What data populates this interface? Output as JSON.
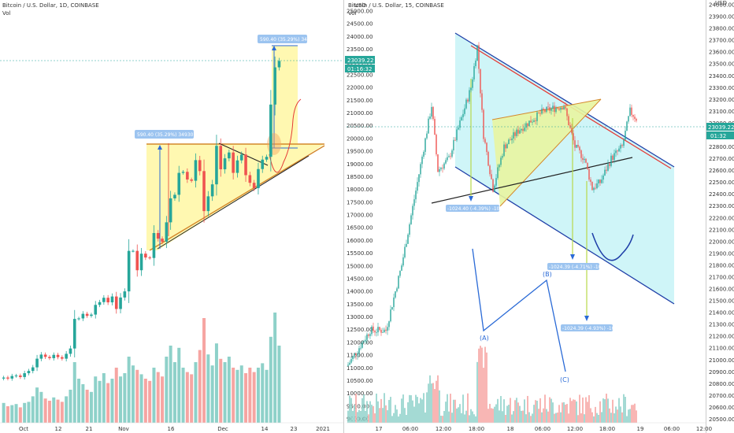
{
  "chart_data": [
    {
      "type": "candlestick",
      "title": "Bitcoin / U.S. Dollar, 1D, COINBASE",
      "subtitle": "Vol",
      "x_ticks": [
        "Oct",
        "12",
        "21",
        "Nov",
        "16",
        "Dec",
        "14",
        "23",
        "2021"
      ],
      "y_ticks": [
        "25000.00",
        "24500.00",
        "24000.00",
        "23500.00",
        "23000.00",
        "22500.00",
        "22000.00",
        "21500.00",
        "21000.00",
        "20500.00",
        "20000.00",
        "19500.00",
        "19000.00",
        "18500.00",
        "18000.00",
        "17500.00",
        "17000.00",
        "16500.00",
        "16000.00",
        "15500.00",
        "15000.00",
        "14500.00",
        "14000.00",
        "13500.00",
        "13000.00",
        "12500.00",
        "12000.00",
        "11500.00",
        "11000.00",
        "10500.00",
        "10000.00",
        "9500.00",
        "9000.00"
      ],
      "y_unit": "USD",
      "ylim": [
        9000,
        25000
      ],
      "last_price": "23039.22",
      "countdown": "01:16:32",
      "close": [
        10620,
        10580,
        10680,
        10700,
        10640,
        10790,
        10880,
        11020,
        11360,
        11520,
        11430,
        11380,
        11510,
        11420,
        11360,
        11550,
        11760,
        12920,
        12940,
        13120,
        13040,
        13090,
        13470,
        13580,
        13750,
        13570,
        13800,
        13310,
        13760,
        14000,
        15590,
        15590,
        14830,
        15480,
        15330,
        15310,
        16290,
        16070,
        15950,
        16710,
        17650,
        17790,
        18650,
        18690,
        18390,
        18340,
        19150,
        18720,
        17150,
        17730,
        18200,
        19710,
        18790,
        19220,
        19450,
        18650,
        19140,
        19370,
        18560,
        18260,
        18050,
        18800,
        19170,
        19280,
        21330,
        22790,
        23039.22
      ],
      "volume": [
        0.18,
        0.15,
        0.16,
        0.17,
        0.14,
        0.18,
        0.19,
        0.24,
        0.32,
        0.28,
        0.22,
        0.2,
        0.23,
        0.21,
        0.19,
        0.24,
        0.3,
        0.55,
        0.4,
        0.35,
        0.3,
        0.28,
        0.42,
        0.38,
        0.45,
        0.36,
        0.4,
        0.5,
        0.42,
        0.45,
        0.6,
        0.52,
        0.48,
        0.44,
        0.4,
        0.38,
        0.5,
        0.46,
        0.42,
        0.6,
        0.7,
        0.55,
        0.68,
        0.5,
        0.46,
        0.44,
        0.55,
        0.66,
        0.95,
        0.62,
        0.52,
        0.72,
        0.58,
        0.55,
        0.6,
        0.5,
        0.48,
        0.52,
        0.45,
        0.5,
        0.46,
        0.5,
        0.54,
        0.48,
        0.78,
        1.0,
        0.7
      ],
      "measurement_label": "590.40 (35.29%) 34930",
      "measurement_label_2": "590.40 (35.29%) 34930"
    },
    {
      "type": "candlestick",
      "title": "Bitcoin / U.S. Dollar, 15, COINBASE",
      "subtitle": "Vol",
      "x_ticks": [
        "17",
        "06:00",
        "12:00",
        "18:00",
        "18",
        "06:00",
        "12:00",
        "18:00",
        "19",
        "06:00",
        "12:00"
      ],
      "y_ticks": [
        "24000.00",
        "23900.00",
        "23800.00",
        "23700.00",
        "23600.00",
        "23500.00",
        "23400.00",
        "23300.00",
        "23200.00",
        "23100.00",
        "23000.00",
        "22900.00",
        "22800.00",
        "22700.00",
        "22600.00",
        "22500.00",
        "22400.00",
        "22300.00",
        "22200.00",
        "22100.00",
        "22000.00",
        "21900.00",
        "21800.00",
        "21700.00",
        "21600.00",
        "21500.00",
        "21400.00",
        "21300.00",
        "21200.00",
        "21100.00",
        "21000.00",
        "20900.00",
        "20800.00",
        "20700.00",
        "20600.00",
        "20500.00"
      ],
      "y_unit": "USD",
      "ylim": [
        20470,
        24000
      ],
      "last_price": "23039.22",
      "countdown": "01:32",
      "elliott_labels": [
        "(A)",
        "(B)",
        "(C)"
      ],
      "measure_labels": [
        "-1024.40 (-4.39%) -102.4k",
        "-1024.39 (-4.71%) -102.4k",
        "-1024.39 (-4.93%) -102.4k"
      ]
    }
  ],
  "colors": {
    "up": "#26a69a",
    "down": "#ef5350",
    "vol_up": "#8ed1c9",
    "vol_down": "#f6a5a2",
    "triangle_fill": "#fff7a8",
    "channel_fill": "#c7f3f7",
    "trend_blue": "#1f3fa8",
    "trend_red": "#e53935",
    "wave": "#2a6ad6",
    "price_tag": "#26a69a"
  }
}
